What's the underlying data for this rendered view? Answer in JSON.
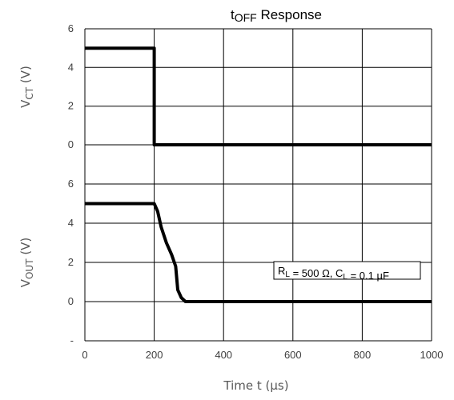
{
  "chart_data": {
    "type": "line",
    "title": {
      "main": "t",
      "sub": "OFF",
      "rest": " Response"
    },
    "xlabel": "Time  t (µs)",
    "xlim": [
      0,
      1000
    ],
    "xticks": [
      "0",
      "200",
      "400",
      "600",
      "800",
      "1000"
    ],
    "grid": true,
    "panels": [
      {
        "ylabel": {
          "main": "V",
          "sub": "CT",
          "rest": " (V)"
        },
        "ylim": [
          0,
          6
        ],
        "yticks": [
          "0",
          "2",
          "4",
          "6"
        ],
        "series": [
          {
            "x": [
              0,
              200,
              200,
              1000
            ],
            "y": [
              5,
              5,
              0,
              0
            ]
          }
        ]
      },
      {
        "ylabel": {
          "main": "V",
          "sub": "OUT",
          "rest": " (V)"
        },
        "ylim": [
          -2,
          6
        ],
        "yticks": [
          "-",
          "0",
          "2",
          "4",
          "6"
        ],
        "series": [
          {
            "x": [
              0,
              200,
              210,
              220,
              235,
              250,
              258,
              262,
              268,
              278,
              290,
              1000
            ],
            "y": [
              5,
              5,
              4.6,
              3.8,
              3.0,
              2.4,
              2.0,
              1.8,
              0.6,
              0.2,
              0,
              0
            ]
          }
        ],
        "annotation": {
          "parts": [
            {
              "t": "R",
              "sub": false
            },
            {
              "t": "L",
              "sub": true
            },
            {
              "t": " = 500 Ω, C",
              "sub": false
            },
            {
              "t": "L",
              "sub": true
            },
            {
              "t": " = 0.1 µF",
              "sub": false
            }
          ]
        }
      }
    ]
  }
}
